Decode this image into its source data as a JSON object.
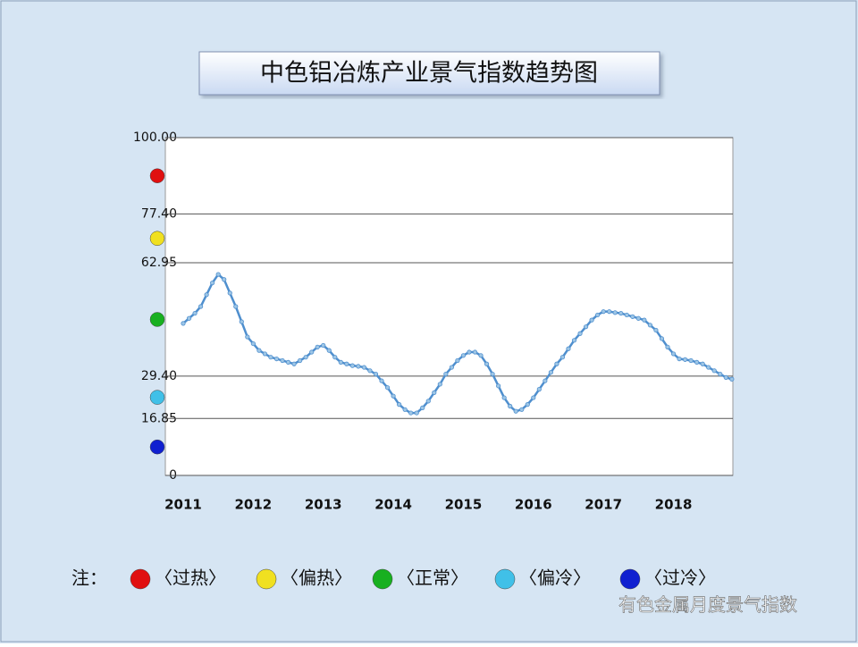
{
  "chart_data": {
    "type": "line",
    "title": "中色铝冶炼产业景气指数趋势图",
    "categories": [
      "2011",
      null,
      null,
      null,
      null,
      null,
      null,
      null,
      null,
      null,
      null,
      null,
      "2012",
      null,
      null,
      null,
      null,
      null,
      null,
      null,
      null,
      null,
      null,
      null,
      "2013",
      null,
      null,
      null,
      null,
      null,
      null,
      null,
      null,
      null,
      null,
      null,
      "2014",
      null,
      null,
      null,
      null,
      null,
      null,
      null,
      null,
      null,
      null,
      null,
      "2015",
      null,
      null,
      null,
      null,
      null,
      null,
      null,
      null,
      null,
      null,
      null,
      "2016",
      null,
      null,
      null,
      null,
      null,
      null,
      null,
      null,
      null,
      null,
      null,
      "2017",
      null,
      null,
      null,
      null,
      null,
      null,
      null,
      null,
      null,
      null,
      null,
      "2018",
      null,
      null,
      null,
      null,
      null,
      null,
      null,
      null,
      null,
      null
    ],
    "series": [
      {
        "color": "#4f8fce",
        "values": [
          45,
          46.5,
          48,
          50,
          53.5,
          57,
          59.5,
          58,
          54,
          50,
          45.5,
          41,
          39,
          37,
          36,
          35,
          34.5,
          34,
          33.5,
          33,
          34,
          35,
          36.5,
          38,
          38.5,
          37,
          35,
          33.5,
          33,
          32.5,
          32.3,
          32,
          31,
          30,
          28,
          26,
          23.5,
          21,
          19.5,
          18.5,
          18.5,
          20,
          22,
          24.5,
          27,
          30,
          32,
          34,
          35.5,
          36.5,
          36.5,
          35.5,
          33,
          30,
          26.5,
          23,
          20.5,
          19,
          19.5,
          21,
          23,
          25.5,
          28,
          30.5,
          33,
          35,
          37.5,
          40,
          42,
          44,
          46,
          47.5,
          48.5,
          48.5,
          48.2,
          48,
          47.5,
          47,
          46.5,
          46,
          44.5,
          43,
          40.5,
          38,
          36,
          34.5,
          34.3,
          34,
          33.5,
          33,
          32,
          31,
          30,
          29,
          28.5
        ]
      }
    ],
    "ylim": [
      0,
      100
    ],
    "yticks": [
      0,
      16.85,
      {
        "value": 29.4,
        "label": "29.40"
      },
      62.95,
      {
        "value": 77.4,
        "label": "77.40"
      },
      {
        "value": 100,
        "label": "100.00"
      }
    ],
    "grid": true,
    "legend_note": "注：",
    "zones": [
      {
        "name": "〈过热〉",
        "color": "#e01010"
      },
      {
        "name": "〈偏热〉",
        "color": "#f0e020"
      },
      {
        "name": "〈正常〉",
        "color": "#18b020"
      },
      {
        "name": "〈偏冷〉",
        "color": "#40c0e8"
      },
      {
        "name": "〈过冷〉",
        "color": "#1020d0"
      }
    ],
    "watermark": "有色金属月度景气指数"
  }
}
